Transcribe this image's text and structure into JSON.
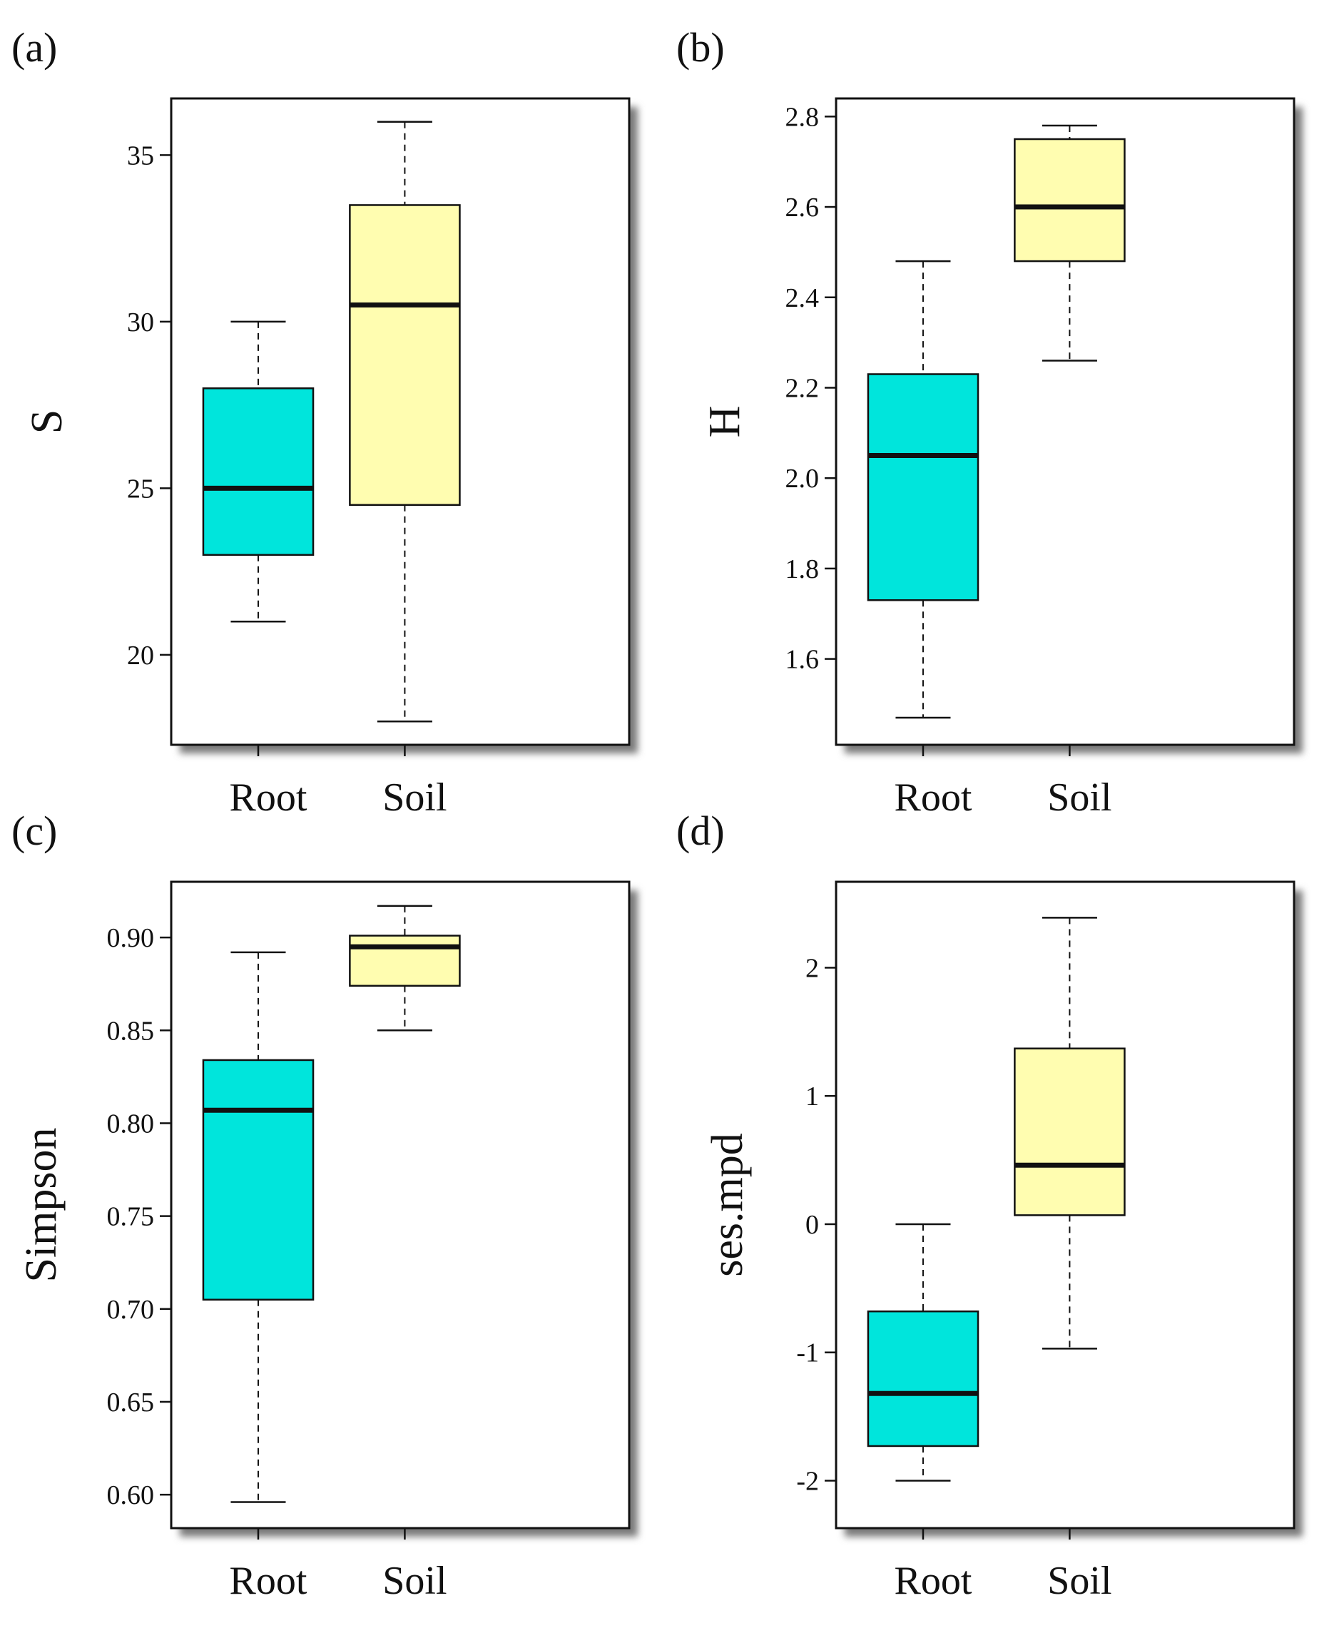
{
  "figure": {
    "colors": {
      "root": "#00E5DC",
      "soil": "#FFFDB0",
      "stroke": "#111111",
      "shadow": "#7a7a7a"
    }
  },
  "chart_data": [
    {
      "type": "boxplot",
      "panel_label": "(a)",
      "ylabel": "S",
      "categories": [
        "Root",
        "Soil"
      ],
      "ylim": [
        17.3,
        36.7
      ],
      "yticks": [
        20,
        25,
        30,
        35
      ],
      "ytick_labels": [
        "20",
        "25",
        "30",
        "35"
      ],
      "series": [
        {
          "name": "Root",
          "whisker_low": 21,
          "q1": 23,
          "median": 25,
          "q3": 28,
          "whisker_high": 30,
          "color": "#00E5DC"
        },
        {
          "name": "Soil",
          "whisker_low": 18,
          "q1": 24.5,
          "median": 30.5,
          "q3": 33.5,
          "whisker_high": 36,
          "color": "#FFFDB0"
        }
      ]
    },
    {
      "type": "boxplot",
      "panel_label": "(b)",
      "ylabel": "H",
      "categories": [
        "Root",
        "Soil"
      ],
      "ylim": [
        1.41,
        2.84
      ],
      "yticks": [
        1.6,
        1.8,
        2.0,
        2.2,
        2.4,
        2.6,
        2.8
      ],
      "ytick_labels": [
        "1.6",
        "1.8",
        "2.0",
        "2.2",
        "2.4",
        "2.6",
        "2.8"
      ],
      "series": [
        {
          "name": "Root",
          "whisker_low": 1.47,
          "q1": 1.73,
          "median": 2.05,
          "q3": 2.23,
          "whisker_high": 2.48,
          "color": "#00E5DC"
        },
        {
          "name": "Soil",
          "whisker_low": 2.26,
          "q1": 2.48,
          "median": 2.6,
          "q3": 2.75,
          "whisker_high": 2.78,
          "color": "#FFFDB0"
        }
      ]
    },
    {
      "type": "boxplot",
      "panel_label": "(c)",
      "ylabel": "Simpson",
      "categories": [
        "Root",
        "Soil"
      ],
      "ylim": [
        0.582,
        0.93
      ],
      "yticks": [
        0.6,
        0.65,
        0.7,
        0.75,
        0.8,
        0.85,
        0.9
      ],
      "ytick_labels": [
        "0.60",
        "0.65",
        "0.70",
        "0.75",
        "0.80",
        "0.85",
        "0.90"
      ],
      "series": [
        {
          "name": "Root",
          "whisker_low": 0.596,
          "q1": 0.705,
          "median": 0.807,
          "q3": 0.834,
          "whisker_high": 0.892,
          "color": "#00E5DC"
        },
        {
          "name": "Soil",
          "whisker_low": 0.85,
          "q1": 0.874,
          "median": 0.895,
          "q3": 0.901,
          "whisker_high": 0.917,
          "color": "#FFFDB0"
        }
      ]
    },
    {
      "type": "boxplot",
      "panel_label": "(d)",
      "ylabel": "ses.mpd",
      "categories": [
        "Root",
        "Soil"
      ],
      "ylim": [
        -2.37,
        2.67
      ],
      "yticks": [
        -2,
        -1,
        0,
        1,
        2
      ],
      "ytick_labels": [
        "-2",
        "-1",
        "0",
        "1",
        "2"
      ],
      "series": [
        {
          "name": "Root",
          "whisker_low": -2.0,
          "q1": -1.73,
          "median": -1.32,
          "q3": -0.68,
          "whisker_high": 0.0,
          "color": "#00E5DC"
        },
        {
          "name": "Soil",
          "whisker_low": -0.97,
          "q1": 0.07,
          "median": 0.46,
          "q3": 1.37,
          "whisker_high": 2.39,
          "color": "#FFFDB0"
        }
      ]
    }
  ]
}
